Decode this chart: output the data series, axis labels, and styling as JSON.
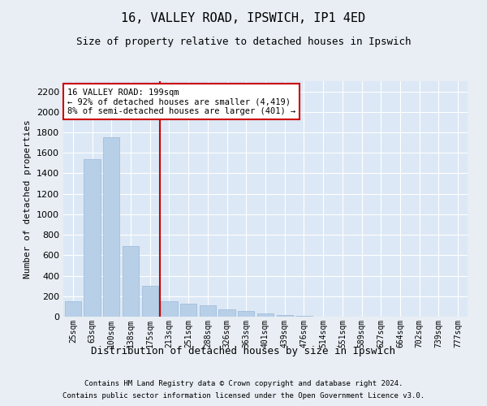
{
  "title1": "16, VALLEY ROAD, IPSWICH, IP1 4ED",
  "title2": "Size of property relative to detached houses in Ipswich",
  "xlabel": "Distribution of detached houses by size in Ipswich",
  "ylabel": "Number of detached properties",
  "footer1": "Contains HM Land Registry data © Crown copyright and database right 2024.",
  "footer2": "Contains public sector information licensed under the Open Government Licence v3.0.",
  "categories": [
    "25sqm",
    "63sqm",
    "100sqm",
    "138sqm",
    "175sqm",
    "213sqm",
    "251sqm",
    "288sqm",
    "326sqm",
    "363sqm",
    "401sqm",
    "439sqm",
    "476sqm",
    "514sqm",
    "551sqm",
    "589sqm",
    "627sqm",
    "664sqm",
    "702sqm",
    "739sqm",
    "777sqm"
  ],
  "values": [
    150,
    1540,
    1750,
    690,
    300,
    150,
    130,
    110,
    75,
    55,
    28,
    18,
    8,
    3,
    0,
    0,
    0,
    0,
    0,
    0,
    0
  ],
  "bar_color": "#b8cfe8",
  "bar_edge_color": "#9ab8d8",
  "vline_x_index": 5,
  "vline_color": "#cc0000",
  "annotation_text": "16 VALLEY ROAD: 199sqm\n← 92% of detached houses are smaller (4,419)\n8% of semi-detached houses are larger (401) →",
  "annotation_box_facecolor": "#ffffff",
  "annotation_box_edgecolor": "#cc0000",
  "ylim": [
    0,
    2300
  ],
  "yticks": [
    0,
    200,
    400,
    600,
    800,
    1000,
    1200,
    1400,
    1600,
    1800,
    2000,
    2200
  ],
  "bg_color": "#e8eef4",
  "plot_bg": "#dce8f5",
  "title1_fontsize": 11,
  "title2_fontsize": 9,
  "ylabel_fontsize": 8,
  "xlabel_fontsize": 9,
  "tick_fontsize": 8,
  "xtick_fontsize": 7,
  "footer_fontsize": 6.5
}
